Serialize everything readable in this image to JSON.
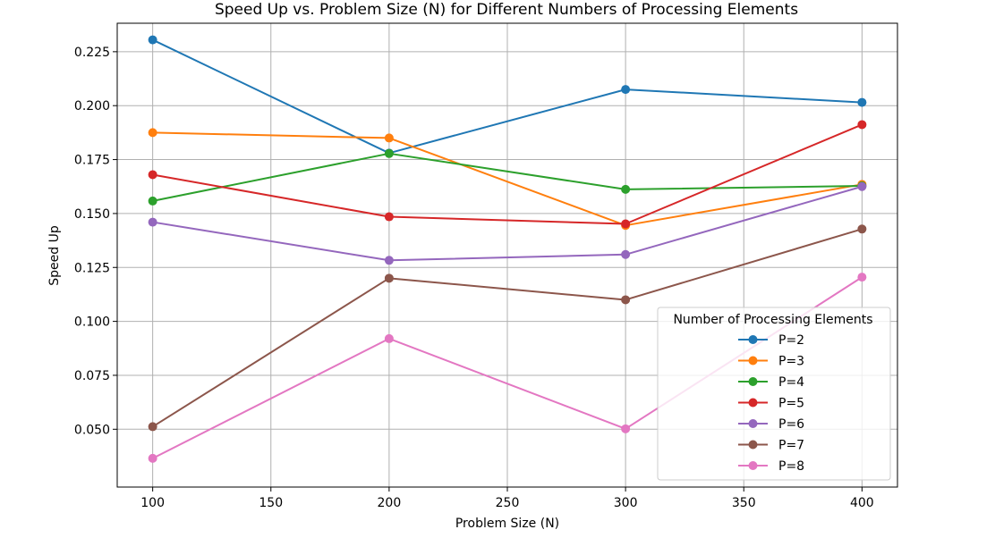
{
  "chart_data": {
    "type": "line",
    "title": "Speed Up vs. Problem Size (N) for Different Numbers of Processing Elements",
    "xlabel": "Problem Size (N)",
    "ylabel": "Speed Up",
    "x": [
      100,
      200,
      300,
      400
    ],
    "xlim": [
      85,
      415
    ],
    "ylim": [
      0.0232,
      0.2382
    ],
    "xticks": [
      100,
      150,
      200,
      250,
      300,
      350,
      400
    ],
    "yticks": [
      0.05,
      0.075,
      0.1,
      0.125,
      0.15,
      0.175,
      0.2,
      0.225
    ],
    "ytick_labels": [
      "0.050",
      "0.075",
      "0.100",
      "0.125",
      "0.150",
      "0.175",
      "0.200",
      "0.225"
    ],
    "grid": true,
    "legend": {
      "title": "Number of Processing Elements",
      "placement": "lower right"
    },
    "series": [
      {
        "name": "P=2",
        "color": "#1f77b4",
        "values": [
          0.2305,
          0.178,
          0.2075,
          0.2015
        ]
      },
      {
        "name": "P=3",
        "color": "#ff7f0e",
        "values": [
          0.1875,
          0.185,
          0.1445,
          0.1635
        ]
      },
      {
        "name": "P=4",
        "color": "#2ca02c",
        "values": [
          0.1558,
          0.1778,
          0.1612,
          0.1628
        ]
      },
      {
        "name": "P=5",
        "color": "#d62728",
        "values": [
          0.168,
          0.1485,
          0.1452,
          0.1912
        ]
      },
      {
        "name": "P=6",
        "color": "#9467bd",
        "values": [
          0.146,
          0.1283,
          0.131,
          0.1625
        ]
      },
      {
        "name": "P=7",
        "color": "#8c564b",
        "values": [
          0.0512,
          0.12,
          0.11,
          0.1428
        ]
      },
      {
        "name": "P=8",
        "color": "#e377c2",
        "values": [
          0.0365,
          0.092,
          0.0502,
          0.1205
        ]
      }
    ]
  }
}
